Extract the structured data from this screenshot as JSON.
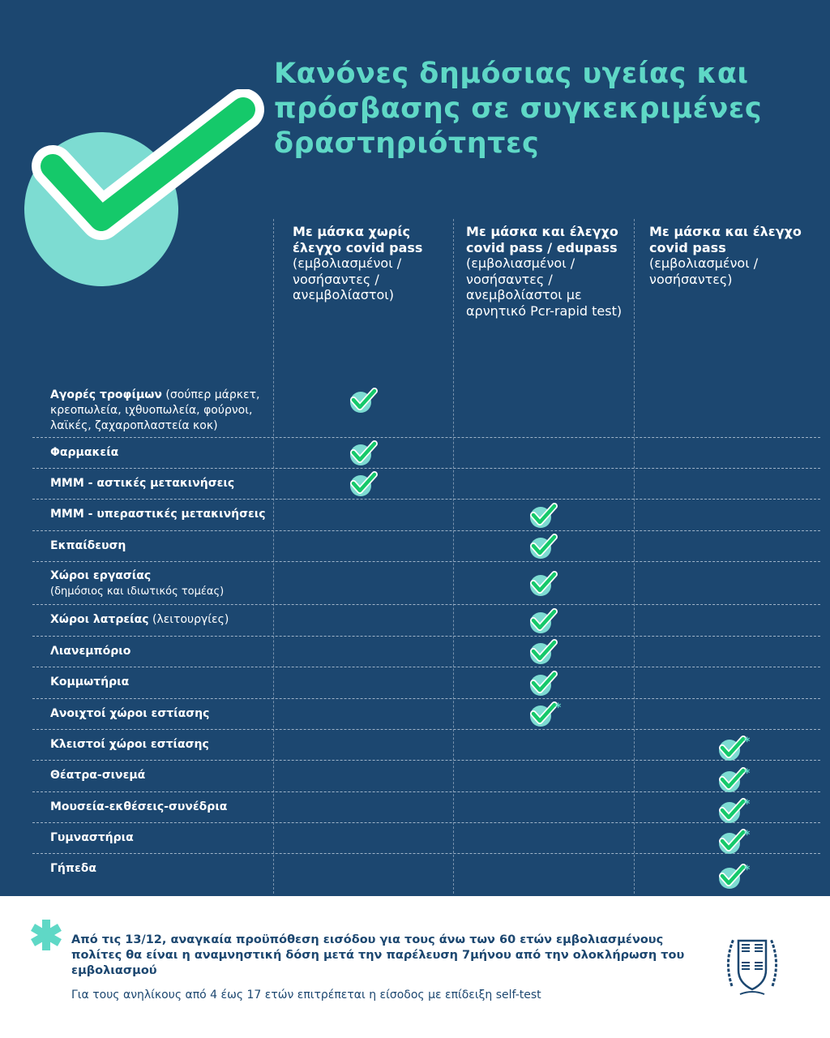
{
  "title": "Κανόνες δημόσιας υγείας και πρόσβασης σε συγκεκριμένες δραστηριότητες",
  "colors": {
    "background": "#1c4770",
    "accent": "#5fd8c6",
    "check": "#1fc86a",
    "check_circle": "#7ddcd2"
  },
  "columns": [
    {
      "bold": "Με μάσκα χωρίς έλεγχο covid pass",
      "rest": "(εμβολιασμένοι / νοσήσαντες / ανεμβολίαστοι)"
    },
    {
      "bold": "Με μάσκα και έλεγχο covid pass / edupass",
      "rest": "(εμβολιασμένοι / νοσήσαντες / ανεμβολίαστοι με αρνητικό Pcr-rapid test)"
    },
    {
      "bold": "Με μάσκα και έλεγχο covid pass",
      "rest": "(εμβολιασμένοι /νοσήσαντες)"
    }
  ],
  "rows": [
    {
      "bold": "Αγορές τροφίμων",
      "extra": " (σούπερ μάρκετ, κρεοπωλεία, ιχθυοπωλεία, φούρνοι, λαϊκές, ζαχαροπλαστεία κοκ)",
      "col": 0,
      "asterisk": false
    },
    {
      "bold": "Φαρμακεία",
      "extra": "",
      "col": 0,
      "asterisk": false
    },
    {
      "bold": "ΜΜΜ - αστικές μετακινήσεις",
      "extra": "",
      "col": 0,
      "asterisk": false
    },
    {
      "bold": "ΜΜΜ - υπεραστικές μετακινήσεις",
      "extra": "",
      "col": 1,
      "asterisk": false
    },
    {
      "bold": "Εκπαίδευση",
      "extra": "",
      "col": 1,
      "asterisk": false
    },
    {
      "bold": "Χώροι εργασίας",
      "extra": "(δημόσιος και ιδιωτικός τομέας)",
      "col": 1,
      "asterisk": false,
      "extra_newline": true
    },
    {
      "bold": "Χώροι λατρείας",
      "extra": " (λειτουργίες)",
      "col": 1,
      "asterisk": false
    },
    {
      "bold": "Λιανεμπόριο",
      "extra": "",
      "col": 1,
      "asterisk": false
    },
    {
      "bold": "Κομμωτήρια",
      "extra": "",
      "col": 1,
      "asterisk": false
    },
    {
      "bold": "Ανοιχτοί χώροι εστίασης",
      "extra": "",
      "col": 1,
      "asterisk": true
    },
    {
      "bold": "Κλειστοί χώροι εστίασης",
      "extra": "",
      "col": 2,
      "asterisk": true
    },
    {
      "bold": "Θέατρα-σινεμά",
      "extra": "",
      "col": 2,
      "asterisk": true
    },
    {
      "bold": "Μουσεία-εκθέσεις-συνέδρια",
      "extra": "",
      "col": 2,
      "asterisk": true
    },
    {
      "bold": "Γυμναστήρια",
      "extra": "",
      "col": 2,
      "asterisk": true
    },
    {
      "bold": "Γήπεδα",
      "extra": "",
      "col": 2,
      "asterisk": true
    }
  ],
  "asterisk_symbol": "*",
  "footer": {
    "note1": "Από τις 13/12, αναγκαία προϋπόθεση εισόδου για τους άνω των 60 ετών εμβολιασμένους πολίτες θα είναι η αναμνηστική δόση μετά την παρέλευση 7μήνου από την ολοκλήρωση του εμβολιασμού",
    "note2": "Για τους ανηλίκους από 4 έως 17 ετών επιτρέπεται η είσοδος με επίδειξη self-test",
    "emblem": "hellenic-republic-emblem"
  }
}
